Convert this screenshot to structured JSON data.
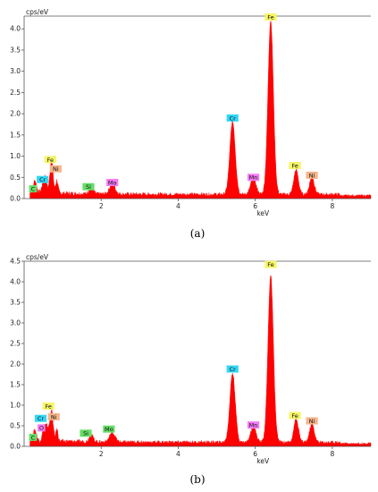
{
  "chart_data": [
    {
      "type": "area",
      "panel_label": "(a)",
      "ylabel": "cps/eV",
      "xlabel": "keV",
      "xlim": [
        0,
        9
      ],
      "ylim": [
        0,
        4.3
      ],
      "x_ticks": [
        2,
        4,
        6,
        8
      ],
      "y_ticks": [
        0.0,
        0.5,
        1.0,
        1.5,
        2.0,
        2.5,
        3.0,
        3.5,
        4.0
      ],
      "y_tick_labels": [
        "0.0",
        "0.5",
        "1.0",
        "1.5",
        "2.0",
        "2.5",
        "3.0",
        "3.5",
        "4.0"
      ],
      "series_color": "#ff0000",
      "baseline": 0.1,
      "peaks": [
        {
          "x": 0.28,
          "y": 0.28,
          "w": 0.04
        },
        {
          "x": 0.53,
          "y": 0.4,
          "w": 0.05
        },
        {
          "x": 0.71,
          "y": 0.78,
          "w": 0.04
        },
        {
          "x": 0.85,
          "y": 0.3,
          "w": 0.03
        },
        {
          "x": 1.74,
          "y": 0.2,
          "w": 0.05
        },
        {
          "x": 2.29,
          "y": 0.25,
          "w": 0.07
        },
        {
          "x": 5.41,
          "y": 1.72,
          "w": 0.07
        },
        {
          "x": 5.95,
          "y": 0.38,
          "w": 0.07
        },
        {
          "x": 6.4,
          "y": 4.1,
          "w": 0.07
        },
        {
          "x": 7.06,
          "y": 0.58,
          "w": 0.06
        },
        {
          "x": 7.47,
          "y": 0.42,
          "w": 0.06
        }
      ],
      "element_labels": [
        {
          "text": "C",
          "x": 0.23,
          "y": 0.23,
          "color": "#66dd66"
        },
        {
          "text": "Cr",
          "x": 0.48,
          "y": 0.45,
          "color": "#33d6f5"
        },
        {
          "text": "Fe",
          "x": 0.68,
          "y": 0.92,
          "color": "#f5f566"
        },
        {
          "text": "Ni",
          "x": 0.82,
          "y": 0.7,
          "color": "#f5b58a"
        },
        {
          "text": "Si",
          "x": 1.67,
          "y": 0.28,
          "color": "#66dd66"
        },
        {
          "text": "Mo",
          "x": 2.29,
          "y": 0.38,
          "color": "#f57af5"
        },
        {
          "text": "Cr",
          "x": 5.41,
          "y": 1.9,
          "color": "#33d6f5"
        },
        {
          "text": "Mn",
          "x": 5.95,
          "y": 0.5,
          "color": "#f57af5"
        },
        {
          "text": "Fe",
          "x": 6.4,
          "y": 4.28,
          "color": "#f5f566"
        },
        {
          "text": "Fe",
          "x": 7.03,
          "y": 0.78,
          "color": "#f5f566"
        },
        {
          "text": "Ni",
          "x": 7.47,
          "y": 0.55,
          "color": "#f5b58a"
        }
      ]
    },
    {
      "type": "area",
      "panel_label": "(b)",
      "ylabel": "cps/eV",
      "xlabel": "keV",
      "xlim": [
        0,
        9
      ],
      "ylim": [
        0,
        4.5
      ],
      "x_ticks": [
        2,
        4,
        6,
        8
      ],
      "y_ticks": [
        0.0,
        0.5,
        1.0,
        1.5,
        2.0,
        2.5,
        3.0,
        3.5,
        4.0,
        4.5
      ],
      "y_tick_labels": [
        "0.0",
        "0.5",
        "1.0",
        "1.5",
        "2.0",
        "2.5",
        "3.0",
        "3.5",
        "4.0",
        "4.5"
      ],
      "series_color": "#ff0000",
      "baseline": 0.1,
      "peaks": [
        {
          "x": 0.28,
          "y": 0.25,
          "w": 0.04
        },
        {
          "x": 0.52,
          "y": 0.32,
          "w": 0.04
        },
        {
          "x": 0.6,
          "y": 0.3,
          "w": 0.04
        },
        {
          "x": 0.71,
          "y": 0.76,
          "w": 0.04
        },
        {
          "x": 0.85,
          "y": 0.28,
          "w": 0.03
        },
        {
          "x": 1.74,
          "y": 0.18,
          "w": 0.05
        },
        {
          "x": 2.29,
          "y": 0.23,
          "w": 0.07
        },
        {
          "x": 5.41,
          "y": 1.68,
          "w": 0.07
        },
        {
          "x": 5.95,
          "y": 0.38,
          "w": 0.07
        },
        {
          "x": 6.4,
          "y": 4.05,
          "w": 0.07
        },
        {
          "x": 7.06,
          "y": 0.56,
          "w": 0.06
        },
        {
          "x": 7.47,
          "y": 0.45,
          "w": 0.06
        }
      ],
      "element_labels": [
        {
          "text": "C",
          "x": 0.23,
          "y": 0.22,
          "color": "#66dd66"
        },
        {
          "text": "Cr",
          "x": 0.43,
          "y": 0.68,
          "color": "#33d6f5"
        },
        {
          "text": "O",
          "x": 0.45,
          "y": 0.45,
          "color": "#f57af5"
        },
        {
          "text": "Fe",
          "x": 0.63,
          "y": 0.98,
          "color": "#f5f566"
        },
        {
          "text": "Ni",
          "x": 0.77,
          "y": 0.72,
          "color": "#f5b58a"
        },
        {
          "text": "Si",
          "x": 1.6,
          "y": 0.32,
          "color": "#66dd66"
        },
        {
          "text": "Mo",
          "x": 2.2,
          "y": 0.42,
          "color": "#66dd66"
        },
        {
          "text": "Cr",
          "x": 5.41,
          "y": 1.88,
          "color": "#33d6f5"
        },
        {
          "text": "Mn",
          "x": 5.95,
          "y": 0.52,
          "color": "#f57af5"
        },
        {
          "text": "Fe",
          "x": 6.4,
          "y": 4.42,
          "color": "#f5f566"
        },
        {
          "text": "Fe",
          "x": 7.03,
          "y": 0.75,
          "color": "#f5f566"
        },
        {
          "text": "Ni",
          "x": 7.47,
          "y": 0.62,
          "color": "#f5b58a"
        }
      ]
    }
  ]
}
